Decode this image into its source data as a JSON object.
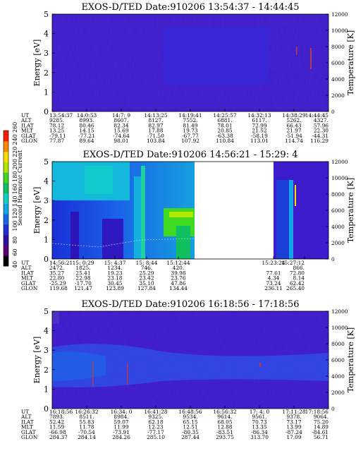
{
  "colorbar": {
    "label": "Second Harmonic Current",
    "ticks": [
      "40",
      "60",
      "80",
      "100",
      "120",
      "140",
      "160",
      "180",
      "200",
      "220",
      "240",
      "260"
    ],
    "colors": [
      "#000000",
      "#5a0070",
      "#2e0fa0",
      "#1f2fd0",
      "#1866e8",
      "#13a6e6",
      "#0fd2c4",
      "#10c060",
      "#40d820",
      "#b0e800",
      "#ffdd00",
      "#ff8800",
      "#ff1a00"
    ]
  },
  "chart_data": [
    {
      "type": "heatmap",
      "title": "EXOS-D/TED  Date:910206  13:54:37 - 14:44:45",
      "ylabel": "Energy [eV]",
      "ylim": [
        0,
        5
      ],
      "yticks": [
        "0",
        "1",
        "2",
        "3",
        "4",
        "5"
      ],
      "y2label": "Temperature [K]",
      "y2lim": [
        0,
        12000
      ],
      "y2ticks": [
        "0",
        "2000",
        "4000",
        "6000",
        "8000",
        "10000",
        "12000"
      ],
      "base_color": "#3c1ccc",
      "row_labels": [
        "UT",
        "ALT",
        "ILAT",
        "MLT",
        "GLAT",
        "GLON"
      ],
      "columns": [
        [
          "13:54:37",
          "9285.",
          "78.12",
          "13.25",
          "-79.11",
          "77.87"
        ],
        [
          "14:0:53",
          "8993.",
          "80.46",
          "14.15",
          "-77.21",
          "89.64"
        ],
        [
          "14:7: 9",
          "8607.",
          "82.34",
          "15.69",
          "-74.64",
          "98.01"
        ],
        [
          "14:13:25",
          "8127.",
          "82.97",
          "17.88",
          "-71.50",
          "103.84"
        ],
        [
          "14:19:41",
          "7552.",
          "81.49",
          "19.73",
          "-67.77",
          "107.92"
        ],
        [
          "14:25:57",
          "6881.",
          "78.01",
          "20.85",
          "-63.38",
          "110.84"
        ],
        [
          "14:32:13",
          "6117.",
          "72.99",
          "21.52",
          "-58.19",
          "113.01"
        ],
        [
          "14:38:29",
          "5262.",
          "66.43",
          "21.97",
          "-51.94",
          "114.74"
        ],
        [
          "14:44:45",
          "4327.",
          "57.96",
          "22.30",
          "-44.31",
          "116.29"
        ]
      ]
    },
    {
      "type": "heatmap",
      "title": "EXOS-D/TED  Date:910206  14:56:21 - 15:29: 4",
      "ylabel": "Energy [eV]",
      "ylim": [
        0,
        5
      ],
      "yticks": [
        "0",
        "1",
        "2",
        "3",
        "4",
        "5"
      ],
      "y2label": "Temperature [K]",
      "y2lim": [
        0,
        12000
      ],
      "y2ticks": [
        "0",
        "2000",
        "4000",
        "6000",
        "8000",
        "10000",
        "12000"
      ],
      "base_color": "#3c1ccc",
      "row_labels": [
        "UT",
        "ALT",
        "ILAT",
        "MLT",
        "GLAT",
        "GLON"
      ],
      "columns": [
        [
          "14:56:21",
          "2472.",
          "35.27",
          "22.80",
          "-25.29",
          "119.68"
        ],
        [
          "15: 0:29",
          "1825.",
          "25.41",
          "22.98",
          "-17.70",
          "121.47"
        ],
        [
          "15: 4:37",
          "1234.",
          "19.23",
          "23.18",
          "30.45",
          "123.89"
        ],
        [
          "15: 8:44",
          "746.",
          "25.29",
          "23.42",
          "35.10",
          "127.84"
        ],
        [
          "15:12:44",
          "420.",
          "39.98",
          "23.76",
          "47.86",
          "134.44"
        ],
        [
          "15:23:24",
          "",
          "77.61",
          "4.34",
          "73.24",
          "236.11"
        ],
        [
          "15:27:12",
          "866.",
          "72.80",
          "8.14",
          "62.42",
          "265.40"
        ]
      ],
      "alt_label_col5": "ALT"
    },
    {
      "type": "heatmap",
      "title": "EXOS-D/TED  Date:910206  16:18:56 - 17:18:56",
      "ylabel": "Energy [eV]",
      "ylim": [
        0,
        5
      ],
      "yticks": [
        "0",
        "1",
        "2",
        "3",
        "4",
        "5"
      ],
      "y2label": "Temperature [K]",
      "y2lim": [
        0,
        12000
      ],
      "y2ticks": [
        "0",
        "2000",
        "4000",
        "6000",
        "8000",
        "10000",
        "12000"
      ],
      "base_color": "#3c1ccc",
      "row_labels": [
        "UT",
        "ALT",
        "ILAT",
        "MLT",
        "GLAT",
        "GLON"
      ],
      "columns": [
        [
          "16:18:56",
          "7893.",
          "52.42",
          "11.59",
          "-66.98",
          "284.37"
        ],
        [
          "16:26:32",
          "8511.",
          "55.83",
          "11.78",
          "-70.54",
          "284.14"
        ],
        [
          "16:34: 0",
          "8984.",
          "59.07",
          "11.99",
          "-73.91",
          "284.26"
        ],
        [
          "16:41:28",
          "9325.",
          "62.18",
          "12.23",
          "-77.17",
          "285.10"
        ],
        [
          "16:48:56",
          "9534.",
          "65.15",
          "12.51",
          "-80.35",
          "287.44"
        ],
        [
          "16:56:32",
          "9614.",
          "68.05",
          "12.88",
          "-83.51",
          "293.75"
        ],
        [
          "17: 4: 0",
          "9561.",
          "70.73",
          "13.35",
          "-86.34",
          "313.70"
        ],
        [
          "17:11:28",
          "9378.",
          "73.17",
          "13.99",
          "-87.24",
          "17.09"
        ],
        [
          "17:18:56",
          "9064.",
          "75.20",
          "14.89",
          "-84.61",
          "56.71"
        ]
      ]
    }
  ]
}
